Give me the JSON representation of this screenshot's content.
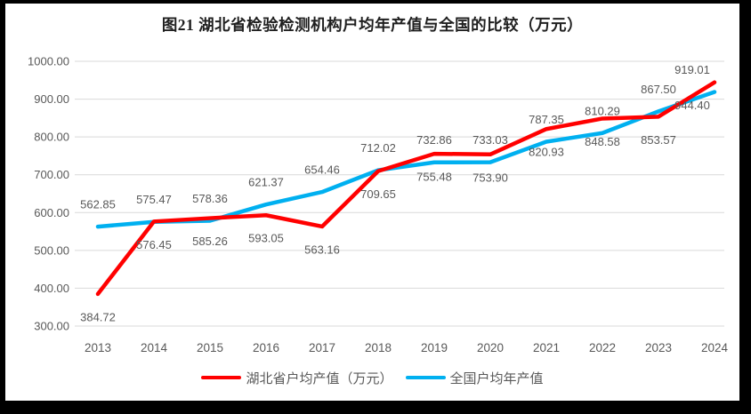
{
  "title": "图21 湖北省检验检测机构户均年产值与全国的比较（万元）",
  "colors": {
    "hubei": "#FF0000",
    "national": "#00B0F0",
    "grid": "#D9D9D9",
    "axis_text": "#595959",
    "data_label_text": "#595959",
    "title_text": "#1F1F1F",
    "frame": "#000000",
    "background": "#FFFFFF"
  },
  "legend": {
    "items": [
      {
        "label": "湖北省户均产值（万元）",
        "color_key": "hubei"
      },
      {
        "label": "全国户均年产值",
        "color_key": "national"
      }
    ]
  },
  "chart_data": {
    "type": "line",
    "title": "图21 湖北省检验检测机构户均年产值与全国的比较（万元）",
    "categories": [
      "2013",
      "2014",
      "2015",
      "2016",
      "2017",
      "2018",
      "2019",
      "2020",
      "2021",
      "2022",
      "2023",
      "2024"
    ],
    "series": [
      {
        "name": "湖北省户均产值（万元）",
        "color_key": "hubei",
        "label_position": "below",
        "values": [
          384.72,
          576.45,
          585.26,
          593.05,
          563.16,
          709.65,
          755.48,
          753.9,
          820.93,
          848.58,
          853.57,
          944.4
        ]
      },
      {
        "name": "全国户均年产值",
        "color_key": "national",
        "label_position": "above",
        "values": [
          562.85,
          575.47,
          578.36,
          621.37,
          654.46,
          712.02,
          732.86,
          733.03,
          787.35,
          810.29,
          867.5,
          919.01
        ]
      }
    ],
    "xlabel": "",
    "ylabel": "",
    "ylim": [
      300,
      1000
    ],
    "ytick_labels": [
      "300.00",
      "400.00",
      "500.00",
      "600.00",
      "700.00",
      "800.00",
      "900.00",
      "1000.00"
    ],
    "grid": true,
    "legend_position": "bottom",
    "data_labels": true,
    "data_label_format": "2dp"
  }
}
